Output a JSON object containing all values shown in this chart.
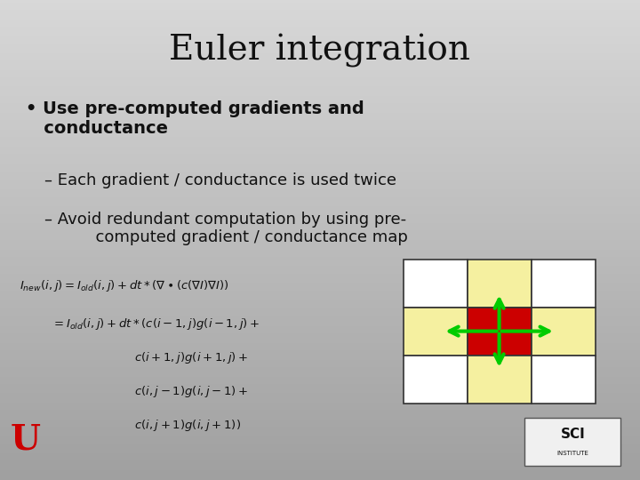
{
  "title": "Euler integration",
  "background_color_top": "#c0c0c0",
  "background_color_bottom": "#e8e8e8",
  "title_fontsize": 28,
  "bullet_text": "Use pre-computed gradients and conductance",
  "sub1": "Each gradient / conductance is used twice",
  "sub2": "Avoid redundant computation by using pre-\n        computed gradient / conductance map",
  "grid_cell_colors": {
    "center": "#cc0000",
    "cross": "#f5f0a0",
    "corner": "#ffffff"
  },
  "arrow_color": "#00cc00",
  "grid_line_color": "#333333",
  "u_logo_color": "#cc0000",
  "text_color": "#000000"
}
